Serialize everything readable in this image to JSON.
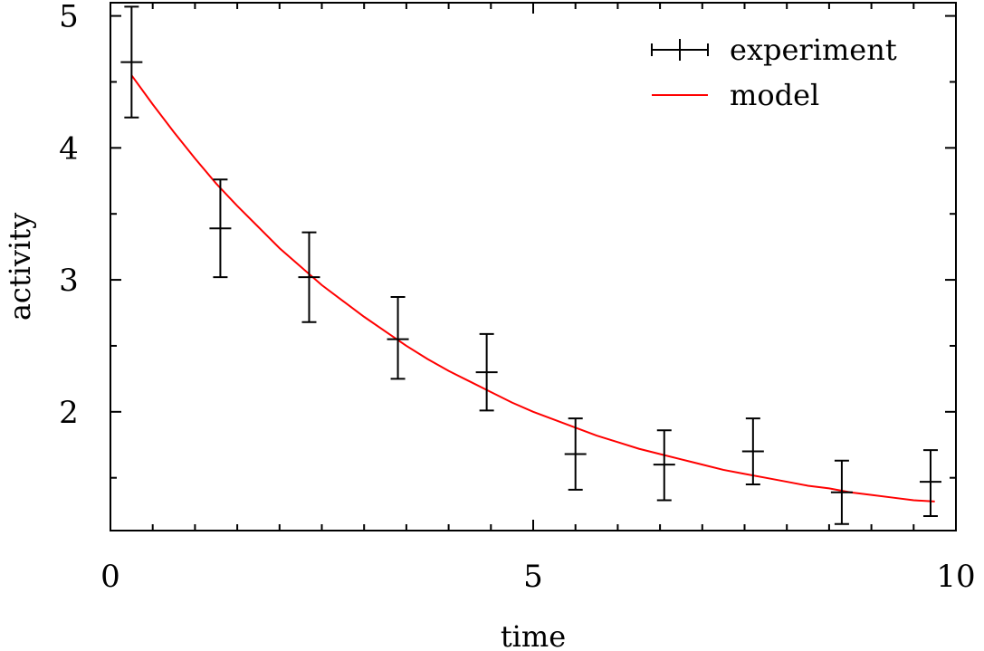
{
  "chart_data": {
    "type": "line",
    "title": "",
    "xlabel": "time",
    "ylabel": "activity",
    "xlim": [
      0,
      10
    ],
    "ylim": [
      1.1,
      5.1
    ],
    "x_ticks": [
      0,
      5,
      10
    ],
    "y_ticks": [
      2,
      3,
      4,
      5
    ],
    "grid": false,
    "legend_position": "top-right",
    "colors": {
      "experiment": "#000000",
      "model": "#ff0000",
      "axes": "#000000"
    },
    "series": [
      {
        "name": "experiment",
        "kind": "errorbar",
        "x": [
          0.25,
          1.3,
          2.35,
          3.4,
          4.45,
          5.5,
          6.55,
          7.6,
          8.65,
          9.7
        ],
        "y": [
          4.65,
          3.39,
          3.02,
          2.55,
          2.3,
          1.68,
          1.6,
          1.7,
          1.39,
          1.47
        ],
        "yerr_low": [
          4.23,
          3.02,
          2.68,
          2.25,
          2.01,
          1.41,
          1.33,
          1.45,
          1.15,
          1.21
        ],
        "yerr_high": [
          5.07,
          3.76,
          3.36,
          2.87,
          2.59,
          1.95,
          1.86,
          1.95,
          1.63,
          1.71
        ]
      },
      {
        "name": "model",
        "kind": "line",
        "x": [
          0.25,
          0.5,
          0.75,
          1.0,
          1.25,
          1.5,
          1.75,
          2.0,
          2.25,
          2.5,
          2.75,
          3.0,
          3.25,
          3.5,
          3.75,
          4.0,
          4.25,
          4.5,
          4.75,
          5.0,
          5.25,
          5.5,
          5.75,
          6.0,
          6.25,
          6.5,
          6.75,
          7.0,
          7.25,
          7.5,
          7.75,
          8.0,
          8.25,
          8.5,
          8.75,
          9.0,
          9.25,
          9.5,
          9.75
        ],
        "y": [
          4.55,
          4.33,
          4.12,
          3.92,
          3.73,
          3.56,
          3.4,
          3.24,
          3.1,
          2.96,
          2.84,
          2.72,
          2.61,
          2.5,
          2.4,
          2.31,
          2.23,
          2.15,
          2.07,
          2.0,
          1.94,
          1.88,
          1.82,
          1.77,
          1.72,
          1.68,
          1.64,
          1.6,
          1.56,
          1.53,
          1.5,
          1.47,
          1.44,
          1.42,
          1.39,
          1.37,
          1.35,
          1.33,
          1.32
        ]
      }
    ]
  }
}
